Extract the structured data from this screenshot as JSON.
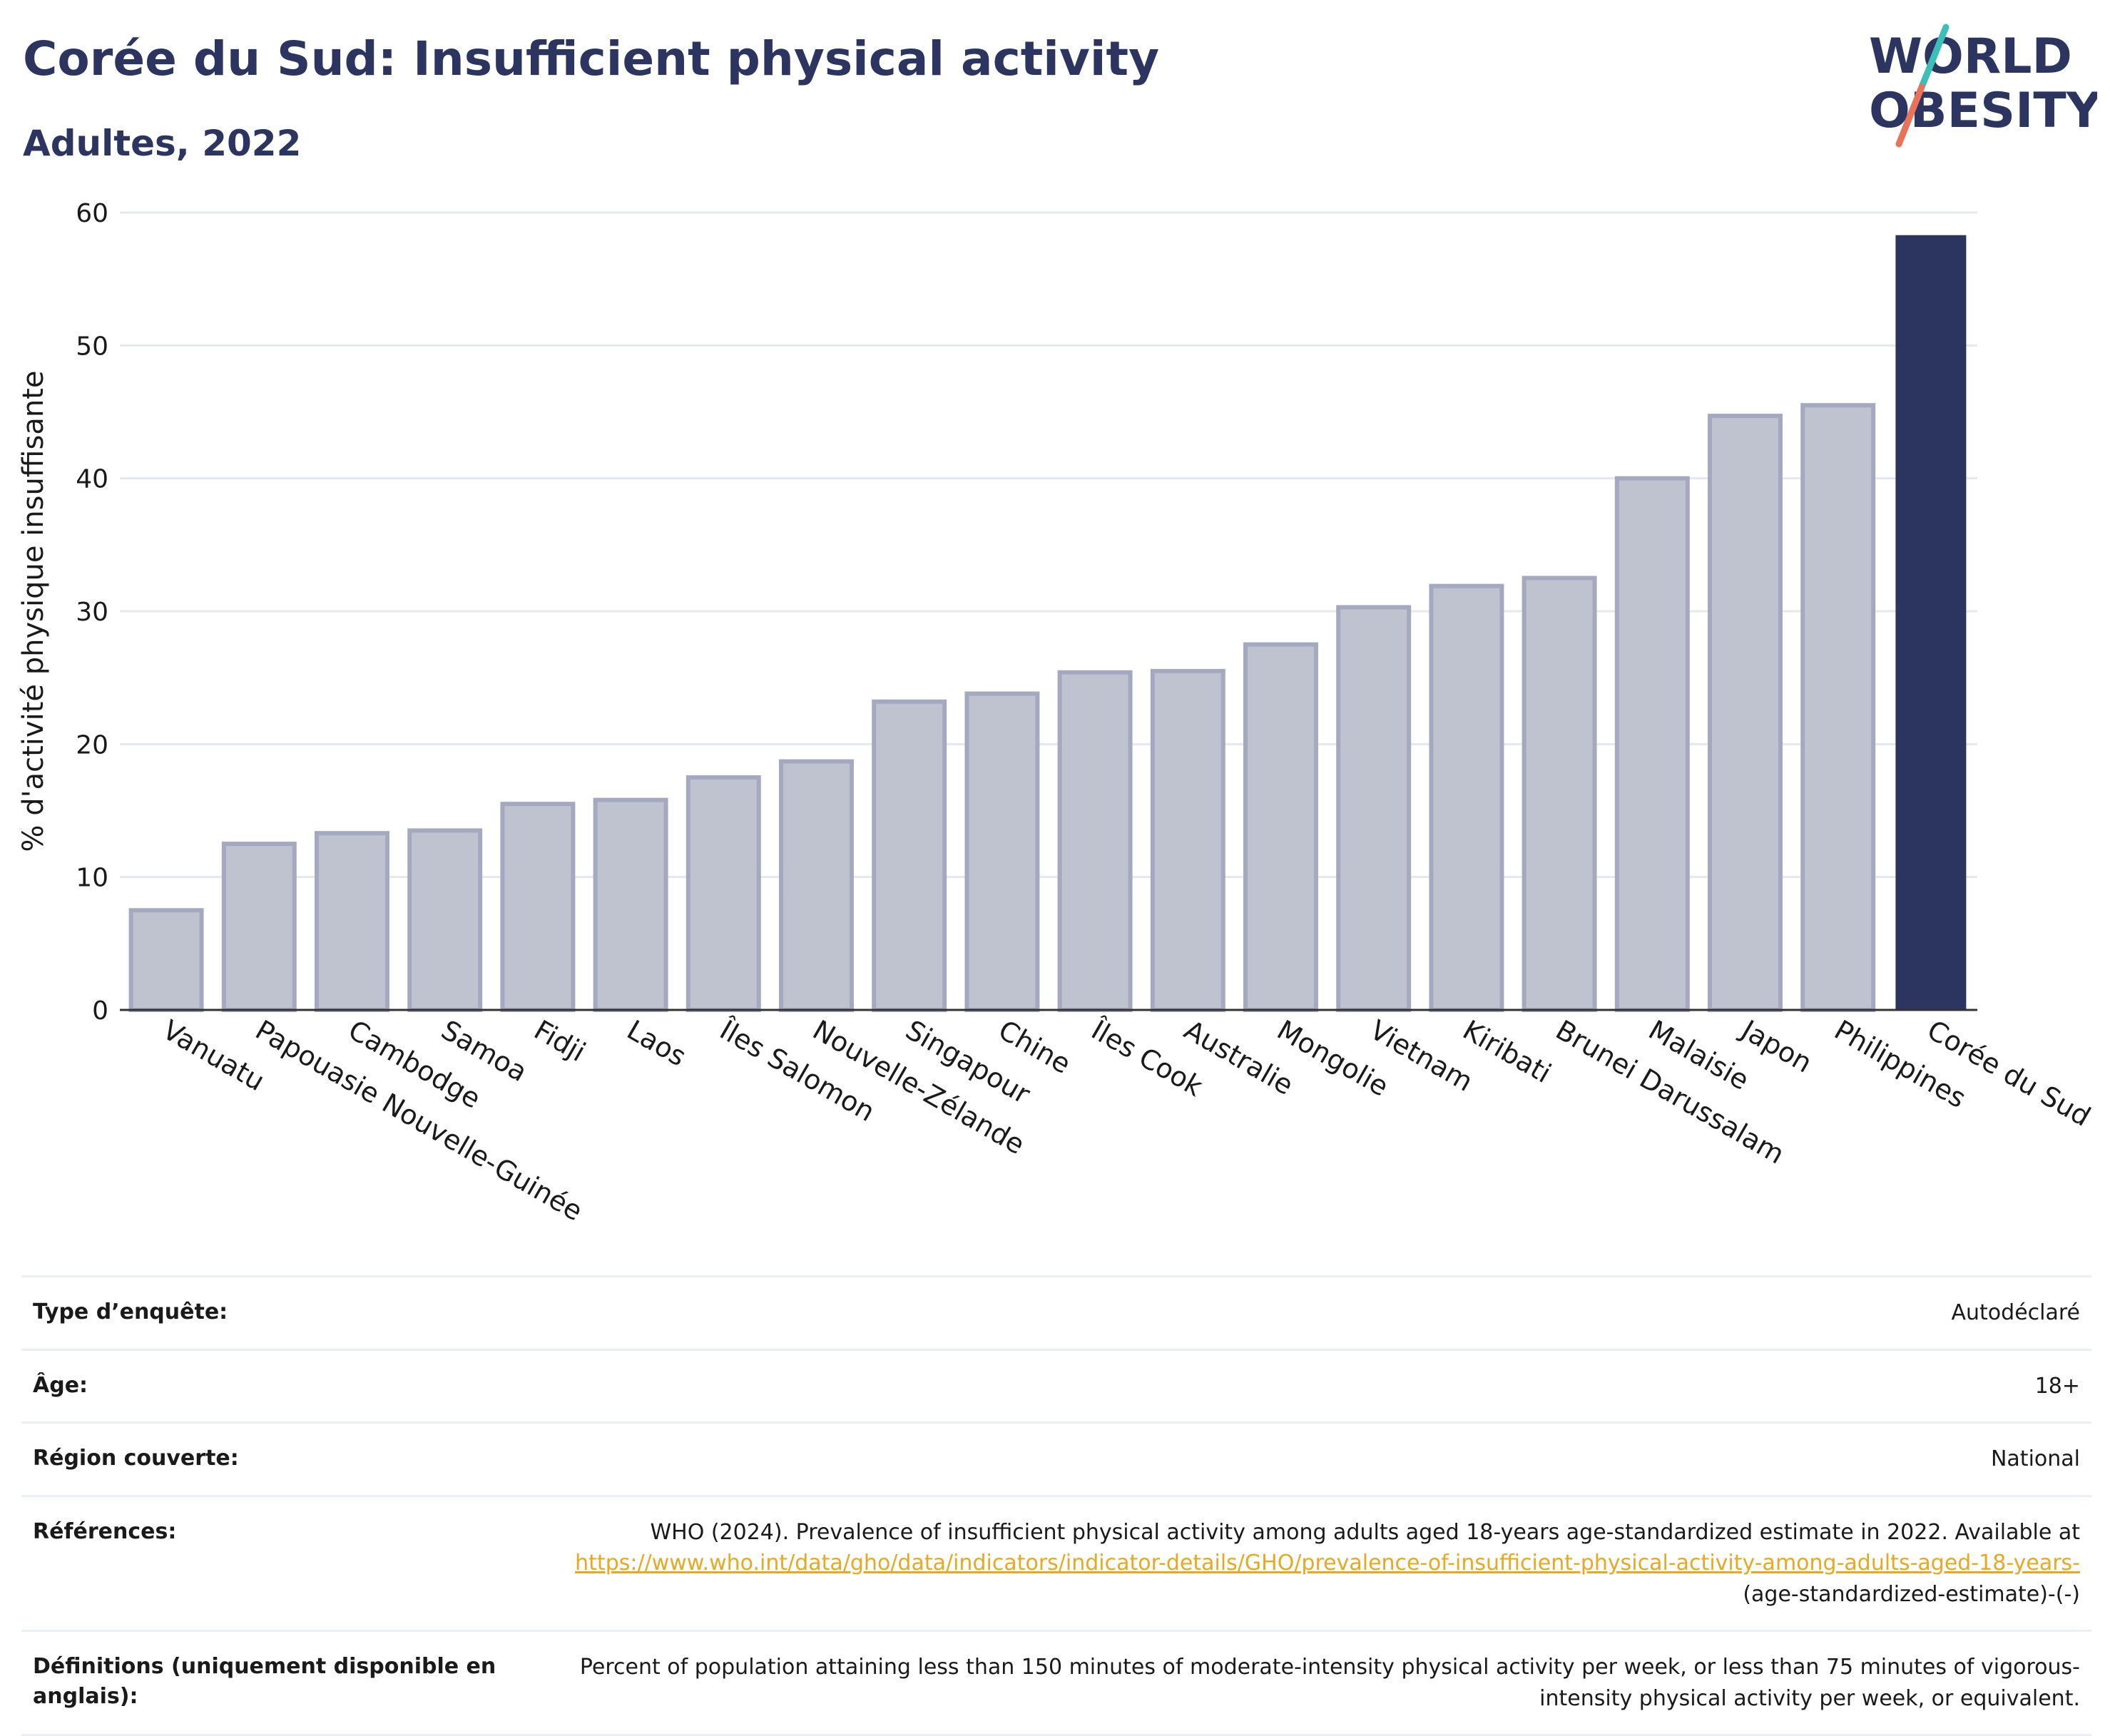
{
  "header": {
    "title": "Corée du Sud: Insufficient physical activity",
    "subtitle": "Adultes, 2022"
  },
  "logo": {
    "line1": "WORLD",
    "line2": "OBESITY",
    "colors": {
      "text": "#2b3560",
      "slash_top": "#3bbfb8",
      "slash_bottom": "#e8735a"
    }
  },
  "chart_data": {
    "type": "bar",
    "title": "",
    "xlabel": "",
    "ylabel": "% d'activité physique insuffisante",
    "ylim": [
      0,
      60
    ],
    "yticks": [
      0,
      10,
      20,
      30,
      40,
      50,
      60
    ],
    "grid": true,
    "categories": [
      "Vanuatu",
      "Papouasie Nouvelle-Guinée",
      "Cambodge",
      "Samoa",
      "Fidji",
      "Laos",
      "Îles Salomon",
      "Nouvelle-Zélande",
      "Singapour",
      "Chine",
      "Îles Cook",
      "Australie",
      "Mongolie",
      "Vietnam",
      "Kiribati",
      "Brunei Darussalam",
      "Malaisie",
      "Japon",
      "Philippines",
      "Corée du Sud"
    ],
    "values": [
      7.5,
      12.5,
      13.3,
      13.5,
      15.5,
      15.8,
      17.5,
      18.7,
      23.2,
      23.8,
      25.4,
      25.5,
      27.5,
      30.3,
      31.9,
      32.5,
      40.0,
      44.7,
      45.5,
      58.3
    ],
    "highlight": "Corée du Sud",
    "colors": {
      "bar": "#bfc2cf",
      "bar_border": "#a4a9c0",
      "highlight": "#2b3560"
    }
  },
  "table": {
    "rows": [
      {
        "key": "Type d’enquête:",
        "value": "Autodéclaré"
      },
      {
        "key": "Âge:",
        "value": "18+"
      },
      {
        "key": "Région couverte:",
        "value": "National"
      }
    ],
    "references": {
      "key": "Références:",
      "text": "WHO (2024). Prevalence of insufficient physical activity among adults aged 18-years age-standardized estimate in 2022. Available at",
      "link": "https://www.who.int/data/gho/data/indicators/indicator-details/GHO/prevalence-of-insufficient-physical-activity-among-adults-aged-18-years-",
      "suffix": "(age-standardized-estimate)-(-)"
    },
    "definitions": {
      "key": "Définitions (uniquement disponible en anglais):",
      "value": "Percent of population attaining less than 150 minutes of moderate-intensity physical activity per week, or less than 75 minutes of vigorous-intensity physical activity per week, or equivalent."
    }
  }
}
